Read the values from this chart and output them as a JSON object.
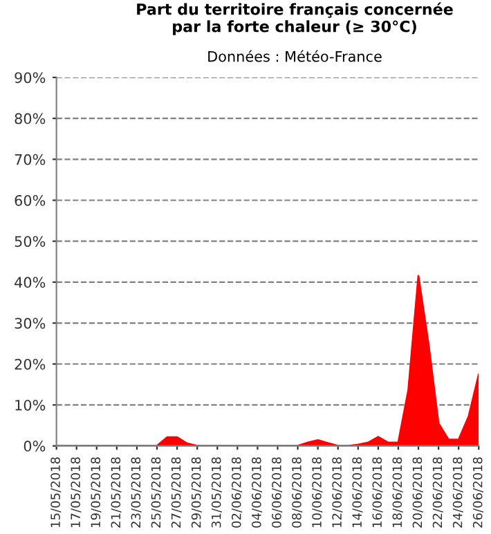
{
  "chart_data": {
    "type": "area",
    "title": "Part du territoire français concernée\npar la forte chaleur (≥ 30°C)",
    "annotations": [
      "Données : Météo-France"
    ],
    "x": [
      "2018-05-15",
      "2018-05-16",
      "2018-05-17",
      "2018-05-18",
      "2018-05-19",
      "2018-05-20",
      "2018-05-21",
      "2018-05-22",
      "2018-05-23",
      "2018-05-24",
      "2018-05-25",
      "2018-05-26",
      "2018-05-27",
      "2018-05-28",
      "2018-05-29",
      "2018-05-30",
      "2018-05-31",
      "2018-06-01",
      "2018-06-02",
      "2018-06-03",
      "2018-06-04",
      "2018-06-05",
      "2018-06-06",
      "2018-06-07",
      "2018-06-08",
      "2018-06-09",
      "2018-06-10",
      "2018-06-11",
      "2018-06-12",
      "2018-06-13",
      "2018-06-14",
      "2018-06-15",
      "2018-06-16",
      "2018-06-17",
      "2018-06-18",
      "2018-06-19",
      "2018-06-20",
      "2018-06-21",
      "2018-06-22",
      "2018-06-23",
      "2018-06-24",
      "2018-06-25",
      "2018-06-26"
    ],
    "series": [
      {
        "color": "#ff0000",
        "values": [
          0,
          0,
          0,
          0,
          0,
          0,
          0,
          0,
          0,
          0,
          0,
          2.1,
          2.1,
          0.6,
          0,
          0,
          0,
          0,
          0,
          0,
          0,
          0,
          0,
          0,
          0,
          0.8,
          1.4,
          0.7,
          0,
          0,
          0.3,
          0.8,
          2.2,
          0.8,
          0.8,
          13.6,
          41.5,
          25,
          5.5,
          1.5,
          1.5,
          7.2,
          17.4
        ]
      }
    ],
    "xlim": [
      "2018-05-15",
      "2018-06-26"
    ],
    "xticks": [
      {
        "value": "2018-05-15",
        "label": "15/05/2018"
      },
      {
        "value": "2018-05-17",
        "label": "17/05/2018"
      },
      {
        "value": "2018-05-19",
        "label": "19/05/2018"
      },
      {
        "value": "2018-05-21",
        "label": "21/05/2018"
      },
      {
        "value": "2018-05-23",
        "label": "23/05/2018"
      },
      {
        "value": "2018-05-25",
        "label": "25/05/2018"
      },
      {
        "value": "2018-05-27",
        "label": "27/05/2018"
      },
      {
        "value": "2018-05-29",
        "label": "29/05/2018"
      },
      {
        "value": "2018-05-31",
        "label": "31/05/2018"
      },
      {
        "value": "2018-06-02",
        "label": "02/06/2018"
      },
      {
        "value": "2018-06-04",
        "label": "04/06/2018"
      },
      {
        "value": "2018-06-06",
        "label": "06/06/2018"
      },
      {
        "value": "2018-06-08",
        "label": "08/06/2018"
      },
      {
        "value": "2018-06-10",
        "label": "10/06/2018"
      },
      {
        "value": "2018-06-12",
        "label": "12/06/2018"
      },
      {
        "value": "2018-06-14",
        "label": "14/06/2018"
      },
      {
        "value": "2018-06-16",
        "label": "16/06/2018"
      },
      {
        "value": "2018-06-18",
        "label": "18/06/2018"
      },
      {
        "value": "2018-06-20",
        "label": "20/06/2018"
      },
      {
        "value": "2018-06-22",
        "label": "22/06/2018"
      },
      {
        "value": "2018-06-24",
        "label": "24/06/2018"
      },
      {
        "value": "2018-06-26",
        "label": "26/06/2018"
      }
    ],
    "ylim": [
      0,
      90
    ],
    "yticks": [
      {
        "value": 0,
        "label": "0%"
      },
      {
        "value": 10,
        "label": "10%"
      },
      {
        "value": 20,
        "label": "20%"
      },
      {
        "value": 30,
        "label": "30%"
      },
      {
        "value": 40,
        "label": "40%"
      },
      {
        "value": 50,
        "label": "50%"
      },
      {
        "value": 60,
        "label": "60%"
      },
      {
        "value": 70,
        "label": "70%"
      },
      {
        "value": 80,
        "label": "80%"
      },
      {
        "value": 90,
        "label": "90%"
      }
    ],
    "grid": "y"
  }
}
